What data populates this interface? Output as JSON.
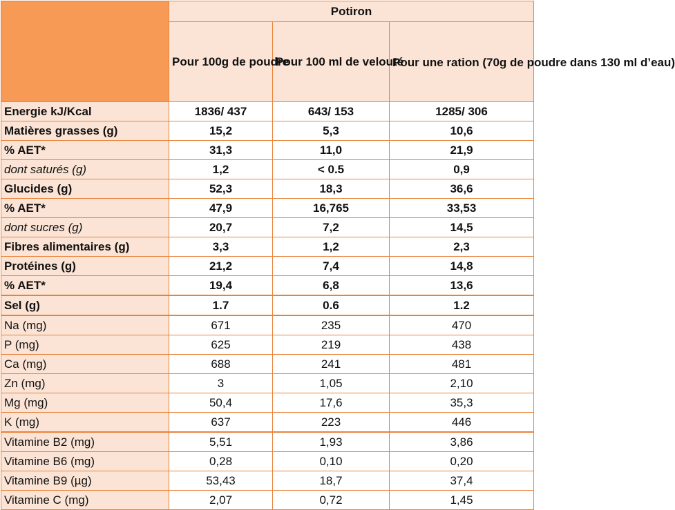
{
  "table": {
    "title": "Potiron",
    "columns": [
      "Pour 100g de poudre",
      "Pour 100 ml de velouté",
      "Pour une ration (70g de poudre dans 130 ml d’eau)"
    ],
    "rows": [
      {
        "label": "Energie kJ/Kcal",
        "style": "bold",
        "values": [
          "1836/ 437",
          "643/ 153",
          "1285/ 306"
        ]
      },
      {
        "label": "Matières grasses (g)",
        "style": "bold",
        "values": [
          "15,2",
          "5,3",
          "10,6"
        ]
      },
      {
        "label": "% AET*",
        "style": "bold",
        "values": [
          "31,3",
          "11,0",
          "21,9"
        ]
      },
      {
        "label": "dont saturés (g)",
        "style": "italic",
        "values": [
          "1,2",
          "< 0.5",
          "0,9"
        ]
      },
      {
        "label": "Glucides (g)",
        "style": "bold",
        "values": [
          "52,3",
          "18,3",
          "36,6"
        ]
      },
      {
        "label": "% AET*",
        "style": "bold",
        "values": [
          "47,9",
          "16,765",
          "33,53"
        ]
      },
      {
        "label": "dont sucres (g)",
        "style": "italic",
        "values": [
          "20,7",
          "7,2",
          "14,5"
        ]
      },
      {
        "label": "Fibres alimentaires (g)",
        "style": "bold",
        "values": [
          "3,3",
          "1,2",
          "2,3"
        ]
      },
      {
        "label": "Protéines (g)",
        "style": "bold",
        "values": [
          "21,2",
          "7,4",
          "14,8"
        ]
      },
      {
        "label": "% AET*",
        "style": "bold",
        "values": [
          "19,4",
          "6,8",
          "13,6"
        ]
      },
      {
        "label": "Sel (g)",
        "style": "bold",
        "values": [
          "1.7",
          "0.6",
          "1.2"
        ]
      },
      {
        "label": "Na (mg)",
        "style": "plain",
        "values": [
          "671",
          "235",
          "470"
        ]
      },
      {
        "label": "P (mg)",
        "style": "plain",
        "values": [
          "625",
          "219",
          "438"
        ]
      },
      {
        "label": "Ca (mg)",
        "style": "plain",
        "values": [
          "688",
          "241",
          "481"
        ]
      },
      {
        "label": "Zn (mg)",
        "style": "plain",
        "values": [
          "3",
          "1,05",
          "2,10"
        ]
      },
      {
        "label": "Mg (mg)",
        "style": "plain",
        "values": [
          "50,4",
          "17,6",
          "35,3"
        ]
      },
      {
        "label": "K (mg)",
        "style": "plain",
        "values": [
          "637",
          "223",
          "446"
        ]
      },
      {
        "label": "Vitamine B2 (mg)",
        "style": "plain",
        "values": [
          "5,51",
          "1,93",
          "3,86"
        ]
      },
      {
        "label": "Vitamine B6 (mg)",
        "style": "plain",
        "values": [
          "0,28",
          "0,10",
          "0,20"
        ]
      },
      {
        "label": "Vitamine B9 (µg)",
        "style": "plain",
        "values": [
          "53,43",
          "18,7",
          "37,4"
        ]
      },
      {
        "label": "Vitamine C (mg)",
        "style": "plain",
        "values": [
          "2,07",
          "0,72",
          "1,45"
        ]
      }
    ]
  },
  "colors": {
    "border": "#e8823a",
    "corner_fill": "#f79a56",
    "light_fill": "#fbe4d5"
  }
}
